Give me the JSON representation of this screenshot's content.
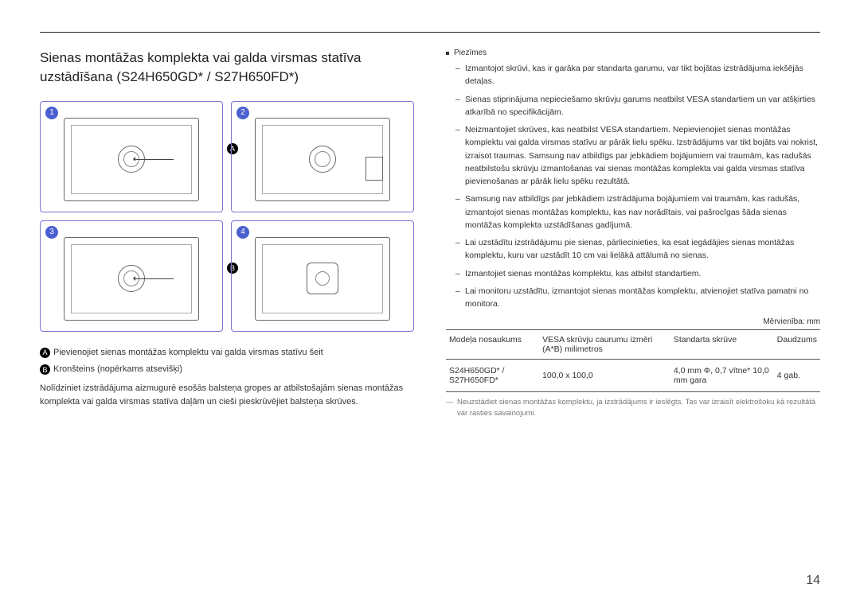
{
  "title": "Sienas montāžas komplekta vai galda virsmas statīva uzstādīšana (S24H650GD* / S27H650FD*)",
  "panels": {
    "n1": "1",
    "n2": "2",
    "n3": "3",
    "n4": "4",
    "labelA": "A",
    "labelB": "B"
  },
  "leftNotes": {
    "a": "Pievienojiet sienas montāžas komplektu vai galda virsmas statīvu šeit",
    "b": "Kronšteins (nopērkams atsevišķi)",
    "body": "Nolīdziniet izstrādājuma aizmugurē esošās balsteņa gropes ar atbilstošajām sienas montāžas komplekta vai galda virsmas statīva daļām un cieši pieskrūvējiet balsteņa skrūves."
  },
  "notesHeader": "Piezīmes",
  "notes": [
    "Izmantojot skrūvi, kas ir garāka par standarta garumu, var tikt bojātas izstrādājuma iekšējās detaļas.",
    "Sienas stiprinājuma nepieciešamo skrūvju garums neatbilst VESA standartiem un var atšķirties atkarībā no specifikācijām.",
    "Neizmantojiet skrūves, kas neatbilst VESA standartiem. Nepievienojiet sienas montāžas komplektu vai galda virsmas statīvu ar pārāk lielu spēku. Izstrādājums var tikt bojāts vai nokrist, izraisot traumas. Samsung nav atbildīgs par jebkādiem bojājumiem vai traumām, kas radušās neatbilstošu skrūvju izmantošanas vai sienas montāžas komplekta vai galda virsmas statīva pievienošanas ar pārāk lielu spēku rezultātā.",
    "Samsung nav atbildīgs par jebkādiem izstrādājuma bojājumiem vai traumām, kas radušās, izmantojot sienas montāžas komplektu, kas nav norādītais, vai pašrocīgas šāda sienas montāžas komplekta uzstādīšanas gadījumā.",
    "Lai uzstādītu izstrādājumu pie sienas, pārliecinieties, ka esat iegādājies sienas montāžas komplektu, kuru var uzstādīt 10 cm vai lielākā attālumā no sienas.",
    "Izmantojiet sienas montāžas komplektu, kas atbilst standartiem.",
    "Lai monitoru uzstādītu, izmantojot sienas montāžas komplektu, atvienojiet statīva pamatni no monitora."
  ],
  "unitLabel": "Mērvienība: mm",
  "table": {
    "h1": "Modeļa nosaukums",
    "h2": "VESA skrūvju caurumu izmēri (A*B) milimetros",
    "h3": "Standarta skrūve",
    "h4": "Daudzums",
    "c1": "S24H650GD* / S27H650FD*",
    "c2": "100,0 x 100,0",
    "c3": "4,0 mm Φ, 0,7 vītne* 10,0 mm gara",
    "c4": "4 gab."
  },
  "footnote": "Neuzstādiet sienas montāžas komplektu, ja izstrādājums ir ieslēgts. Tas var izraisīt elektrošoku kā rezultātā var rasties savainojumi.",
  "pageNum": "14"
}
